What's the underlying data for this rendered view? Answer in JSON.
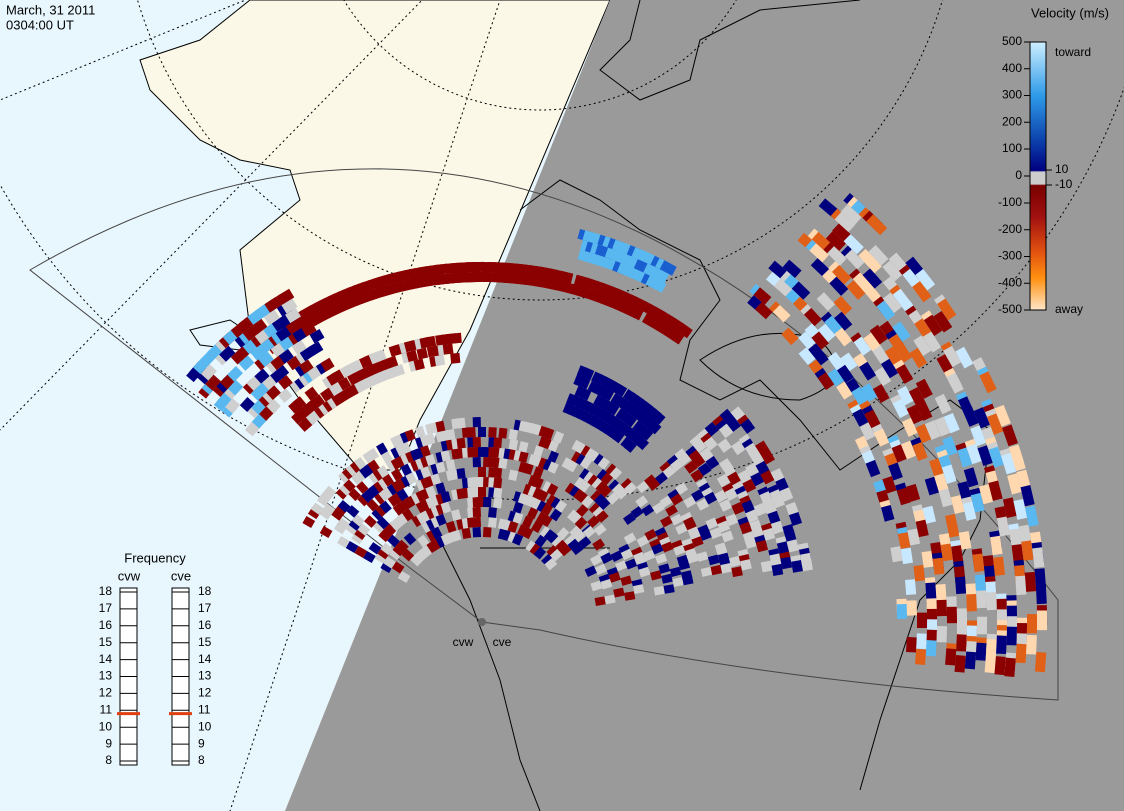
{
  "header": {
    "date": "March, 31 2011",
    "time": "0304:00 UT"
  },
  "velocity_scale": {
    "title": "Velocity (m/s)",
    "ticks": [
      500,
      400,
      300,
      200,
      100,
      0,
      -100,
      -200,
      -300,
      -400,
      -500
    ],
    "inner_ticks": [
      10,
      -10
    ],
    "toward": "toward",
    "away": "away"
  },
  "frequency": {
    "title": "Frequency",
    "radars": [
      {
        "name": "cvw",
        "value": 10.8
      },
      {
        "name": "cve",
        "value": 10.8
      }
    ],
    "ticks": [
      18,
      17,
      16,
      15,
      14,
      13,
      12,
      11,
      10,
      9,
      8
    ]
  },
  "map_labels": [
    "cvw",
    "cve"
  ]
}
